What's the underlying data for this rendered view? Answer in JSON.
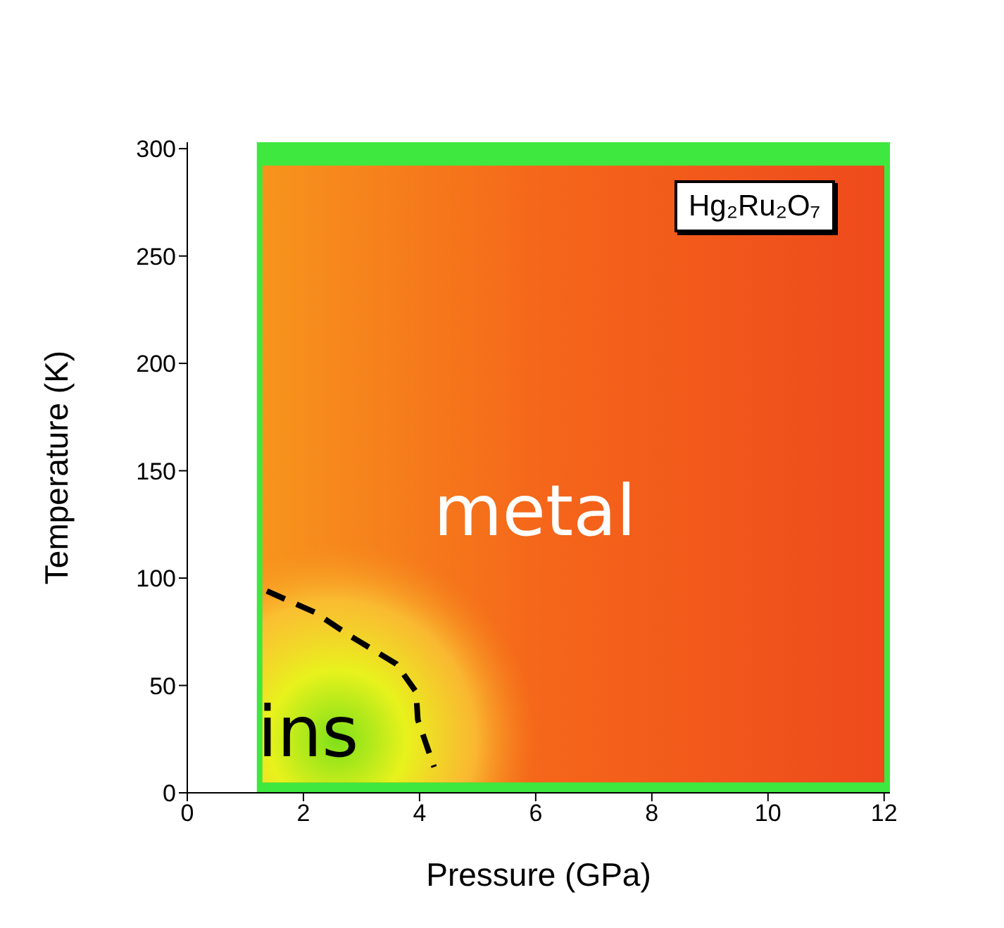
{
  "chart_data": {
    "type": "line",
    "xlabel": "Pressure (GPa)",
    "ylabel": "Temperature (K)",
    "xlim": [
      0,
      12.1
    ],
    "xticks": [
      0,
      2,
      4,
      6,
      8,
      10,
      12
    ],
    "ylim": [
      0,
      303
    ],
    "yticks": [
      0,
      50,
      100,
      150,
      200,
      250,
      300
    ],
    "series": [
      {
        "color": "#000000",
        "line_style": "dashed",
        "marker": "none",
        "x": [
          1.37,
          2.2,
          2.81,
          3.6,
          3.94,
          3.97,
          4.25
        ],
        "values": [
          94,
          84,
          73,
          60,
          47,
          34,
          12
        ]
      }
    ],
    "annotations": [
      "metal",
      "ins",
      "Hg₂Ru₂O₇"
    ]
  }
}
